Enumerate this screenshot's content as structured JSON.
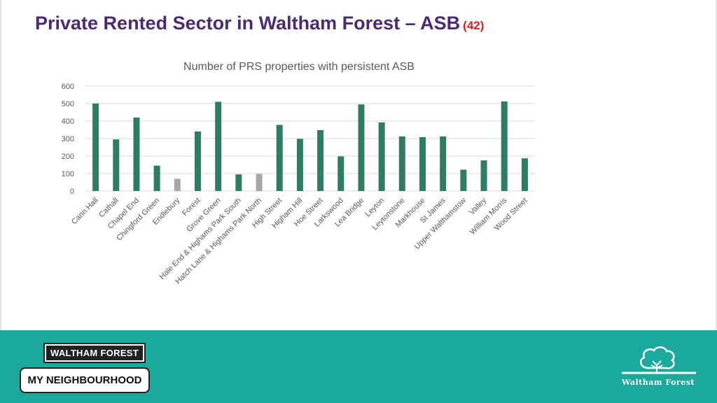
{
  "header": {
    "title": "Private Rented Sector in Waltham Forest – ASB",
    "slide_number": "(42)"
  },
  "footer": {
    "left_logo_top": "WALTHAM FOREST",
    "left_logo_bottom": "MY NEIGHBOURHOOD",
    "right_logo_text": "Waltham Forest",
    "right_logo_icon": "tree-logo-icon"
  },
  "colors": {
    "title": "#4b2a6f",
    "slide_number": "#d62020",
    "bar_primary": "#2e7d63",
    "bar_secondary": "#a6a6a6",
    "footer_band": "#1aa99c",
    "grid": "#d9d9d9"
  },
  "chart_data": {
    "type": "bar",
    "title": "Number of PRS properties with persistent ASB",
    "xlabel": "",
    "ylabel": "",
    "ylim": [
      0,
      600
    ],
    "yticks": [
      0,
      100,
      200,
      300,
      400,
      500,
      600
    ],
    "grid": true,
    "legend": "none",
    "categories": [
      "Cann Hall",
      "Cathall",
      "Chapel End",
      "Chingford Green",
      "Endlebury",
      "Forest",
      "Grove Green",
      "Hale End & Highams Park South",
      "Hatch Lane & Highams Park North",
      "High Street",
      "Higham Hill",
      "Hoe Street",
      "Larkswood",
      "Lea Bridge",
      "Leyton",
      "Leytonstone",
      "Markhouse",
      "St James",
      "Upper Walthamstow",
      "Valley",
      "William Morris",
      "Wood Street"
    ],
    "values": [
      500,
      295,
      420,
      145,
      70,
      340,
      510,
      95,
      98,
      378,
      298,
      348,
      198,
      495,
      392,
      312,
      308,
      312,
      122,
      175,
      512,
      187
    ],
    "bar_colors": [
      "primary",
      "primary",
      "primary",
      "primary",
      "secondary",
      "primary",
      "primary",
      "primary",
      "secondary",
      "primary",
      "primary",
      "primary",
      "primary",
      "primary",
      "primary",
      "primary",
      "primary",
      "primary",
      "primary",
      "primary",
      "primary",
      "primary"
    ]
  }
}
